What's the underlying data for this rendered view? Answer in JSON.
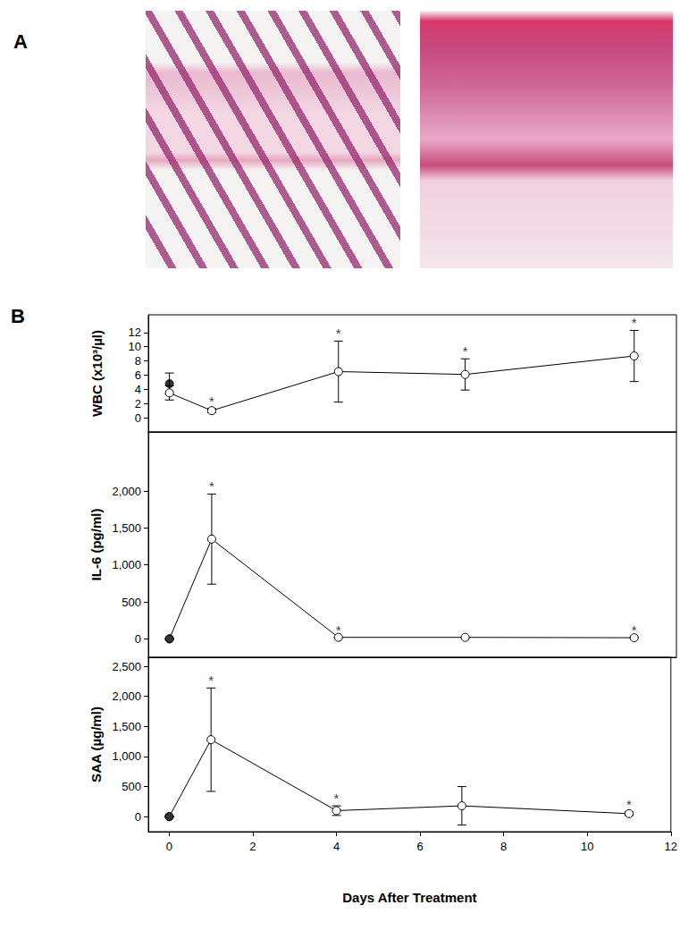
{
  "panel_labels": [
    "A",
    "B"
  ],
  "chart_data": [
    {
      "type": "line",
      "ylabel": "WBC (x10³/µl)",
      "x": [
        0,
        1,
        4,
        7,
        11
      ],
      "xlim": [
        -0.5,
        12
      ],
      "ylim": [
        -2,
        14.5
      ],
      "yticks": [
        0,
        2,
        4,
        6,
        8,
        10,
        12
      ],
      "grid": false,
      "tick_labels": "y",
      "series": [
        {
          "type": "line",
          "color": "#000000",
          "marker": "open",
          "values": [
            3.5,
            1.0,
            6.5,
            6.1,
            8.7
          ],
          "errors": [
            1.0,
            0.3,
            4.3,
            2.2,
            3.6
          ]
        },
        {
          "type": "scatter",
          "color": "#000000",
          "marker": "filled",
          "x": [
            0
          ],
          "values": [
            4.8
          ],
          "errors": [
            1.5
          ]
        }
      ],
      "annotations": [
        {
          "x": 1,
          "text": "*"
        },
        {
          "x": 4,
          "text": "*"
        },
        {
          "x": 7,
          "text": "*"
        },
        {
          "x": 11,
          "text": "*"
        }
      ]
    },
    {
      "type": "line",
      "ylabel": "IL-6 (pg/ml)",
      "x": [
        0,
        1,
        4,
        7,
        11
      ],
      "xlim": [
        -0.5,
        12
      ],
      "ylim": [
        -250,
        2800
      ],
      "yticks": [
        0,
        500,
        1000,
        1500,
        2000
      ],
      "grid": false,
      "tick_labels": "y",
      "series": [
        {
          "type": "line",
          "color": "#000000",
          "marker": "open",
          "values": [
            0,
            1350,
            20,
            20,
            15
          ],
          "errors": [
            0,
            610,
            0,
            0,
            0
          ]
        },
        {
          "type": "scatter",
          "color": "#000000",
          "marker": "filled",
          "x": [
            0
          ],
          "values": [
            0
          ],
          "errors": [
            0
          ]
        }
      ],
      "annotations": [
        {
          "x": 1,
          "text": "*"
        },
        {
          "x": 4,
          "text": "*"
        },
        {
          "x": 11,
          "text": "*"
        }
      ]
    },
    {
      "type": "line",
      "ylabel": "SAA (µg/ml)",
      "xlabel": "Days After Treatment",
      "x": [
        0,
        1,
        4,
        7,
        11
      ],
      "xlim": [
        -0.5,
        12
      ],
      "xticks": [
        0,
        2,
        4,
        6,
        8,
        10,
        12
      ],
      "ylim": [
        -250,
        2650
      ],
      "yticks": [
        0,
        500,
        1000,
        1500,
        2000,
        2500
      ],
      "grid": false,
      "series": [
        {
          "type": "line",
          "color": "#000000",
          "marker": "open",
          "values": [
            0,
            1280,
            100,
            180,
            50
          ],
          "errors": [
            0,
            860,
            80,
            320,
            30
          ]
        },
        {
          "type": "scatter",
          "color": "#000000",
          "marker": "filled",
          "x": [
            0
          ],
          "values": [
            0
          ],
          "errors": [
            0
          ]
        }
      ],
      "annotations": [
        {
          "x": 1,
          "text": "*"
        },
        {
          "x": 4,
          "text": "*"
        },
        {
          "x": 11,
          "text": "*"
        }
      ]
    }
  ]
}
